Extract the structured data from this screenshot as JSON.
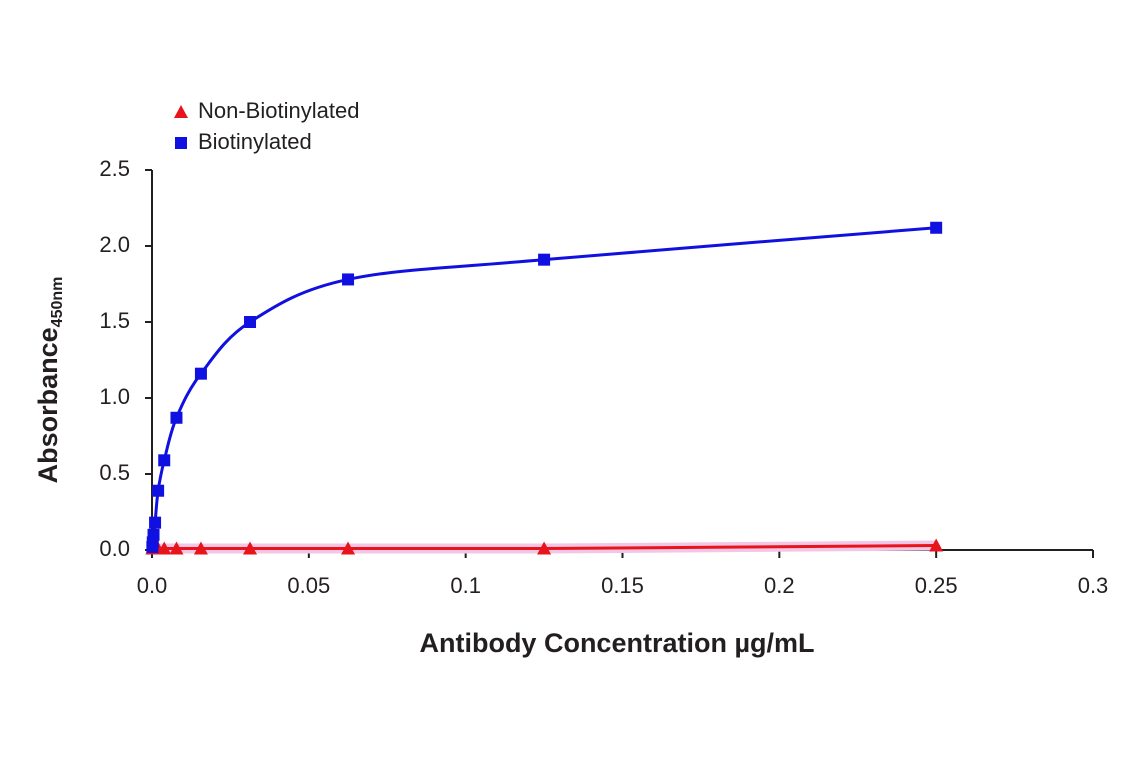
{
  "chart_data": {
    "type": "line",
    "x_label": "Antibody Concentration µg/mL",
    "y_label": "Absorbance",
    "y_label_sub": "450nm",
    "x": [
      0.000122,
      0.000244,
      0.000488,
      0.000977,
      0.00195,
      0.0039,
      0.0078,
      0.0156,
      0.03125,
      0.0625,
      0.125,
      0.25
    ],
    "series": [
      {
        "name": "Non-Biotinylated",
        "color": "#e8141b",
        "marker": "triangle",
        "values": [
          0.01,
          0.01,
          0.01,
          0.01,
          0.01,
          0.01,
          0.01,
          0.01,
          0.01,
          0.01,
          0.01,
          0.03
        ]
      },
      {
        "name": "Biotinylated",
        "color": "#1010e0",
        "marker": "square",
        "values": [
          0.02,
          0.05,
          0.1,
          0.18,
          0.39,
          0.59,
          0.87,
          1.16,
          1.5,
          1.78,
          1.91,
          2.12
        ]
      }
    ],
    "xlim": [
      0,
      0.3
    ],
    "xticks": [
      {
        "value": 0,
        "label": "0.0"
      },
      0.05,
      0.1,
      0.15,
      0.2,
      0.25,
      0.3
    ],
    "ylim": [
      0,
      2.5
    ],
    "yticks": [
      {
        "value": 0,
        "label": "0.0"
      },
      0.5,
      {
        "value": 1,
        "label": "1.0"
      },
      1.5,
      {
        "value": 2,
        "label": "2.0"
      },
      2.5
    ],
    "legend": "top-left",
    "grid": false
  }
}
